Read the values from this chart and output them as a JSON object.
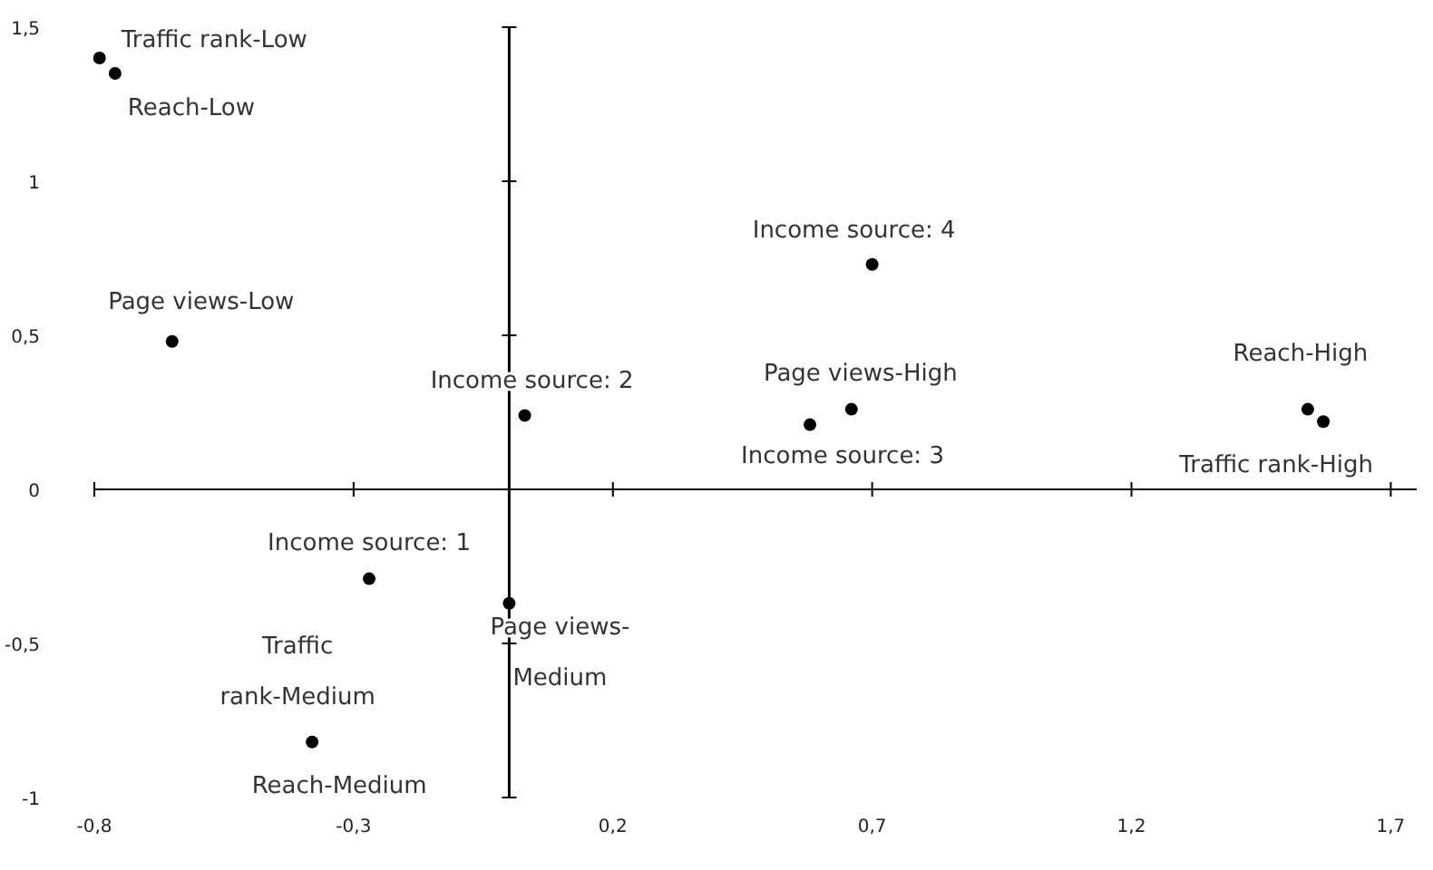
{
  "chart_data": {
    "type": "scatter",
    "marker": "circle",
    "xlim": [
      -0.8,
      1.75
    ],
    "ylim": [
      -1,
      1.5
    ],
    "xticks": [
      {
        "value": -0.8,
        "label": "-0,8"
      },
      {
        "value": -0.3,
        "label": "-0,3"
      },
      {
        "value": 0.2,
        "label": "0,2"
      },
      {
        "value": 0.7,
        "label": "0,7"
      },
      {
        "value": 1.2,
        "label": "1,2"
      },
      {
        "value": 1.7,
        "label": "1,7"
      }
    ],
    "yticks": [
      {
        "value": -1,
        "label": "-1"
      },
      {
        "value": -0.5,
        "label": "-0,5"
      },
      0,
      {
        "value": 0.5,
        "label": "0,5"
      },
      1,
      {
        "value": 1.5,
        "label": "1,5"
      }
    ],
    "series": [
      {
        "color": "#000000",
        "x": [
          -0.79,
          -0.76,
          -0.65,
          0.03,
          0.7,
          0.66,
          0.58,
          1.54,
          1.57,
          -0.27,
          0.0,
          -0.38
        ],
        "values": [
          1.4,
          1.35,
          0.48,
          0.24,
          0.73,
          0.26,
          0.21,
          0.26,
          0.22,
          -0.29,
          -0.37,
          -0.82
        ]
      }
    ],
    "annotations": [
      {
        "text": "Traffic rank-Low",
        "x": -0.79,
        "y": 1.4
      },
      {
        "text": "Reach-Low",
        "x": -0.76,
        "y": 1.35
      },
      {
        "text": "Page views-Low",
        "x": -0.65,
        "y": 0.48
      },
      {
        "text": "Income source: 2",
        "x": 0.03,
        "y": 0.24
      },
      {
        "text": "Income source: 4",
        "x": 0.7,
        "y": 0.73
      },
      {
        "text": "Page views-High",
        "x": 0.66,
        "y": 0.26
      },
      {
        "text": "Income source: 3",
        "x": 0.58,
        "y": 0.21
      },
      {
        "text": "Reach-High",
        "x": 1.54,
        "y": 0.26
      },
      {
        "text": "Traffic rank-High",
        "x": 1.57,
        "y": 0.22
      },
      {
        "text": "Income source: 1",
        "x": -0.27,
        "y": -0.29
      },
      {
        "text": "Page views-Medium",
        "x": 0.0,
        "y": -0.37
      },
      {
        "text": "Traffic rank-Medium",
        "x": -0.38,
        "y": -0.82
      },
      {
        "text": "Reach-Medium",
        "x": -0.38,
        "y": -0.82
      }
    ]
  }
}
